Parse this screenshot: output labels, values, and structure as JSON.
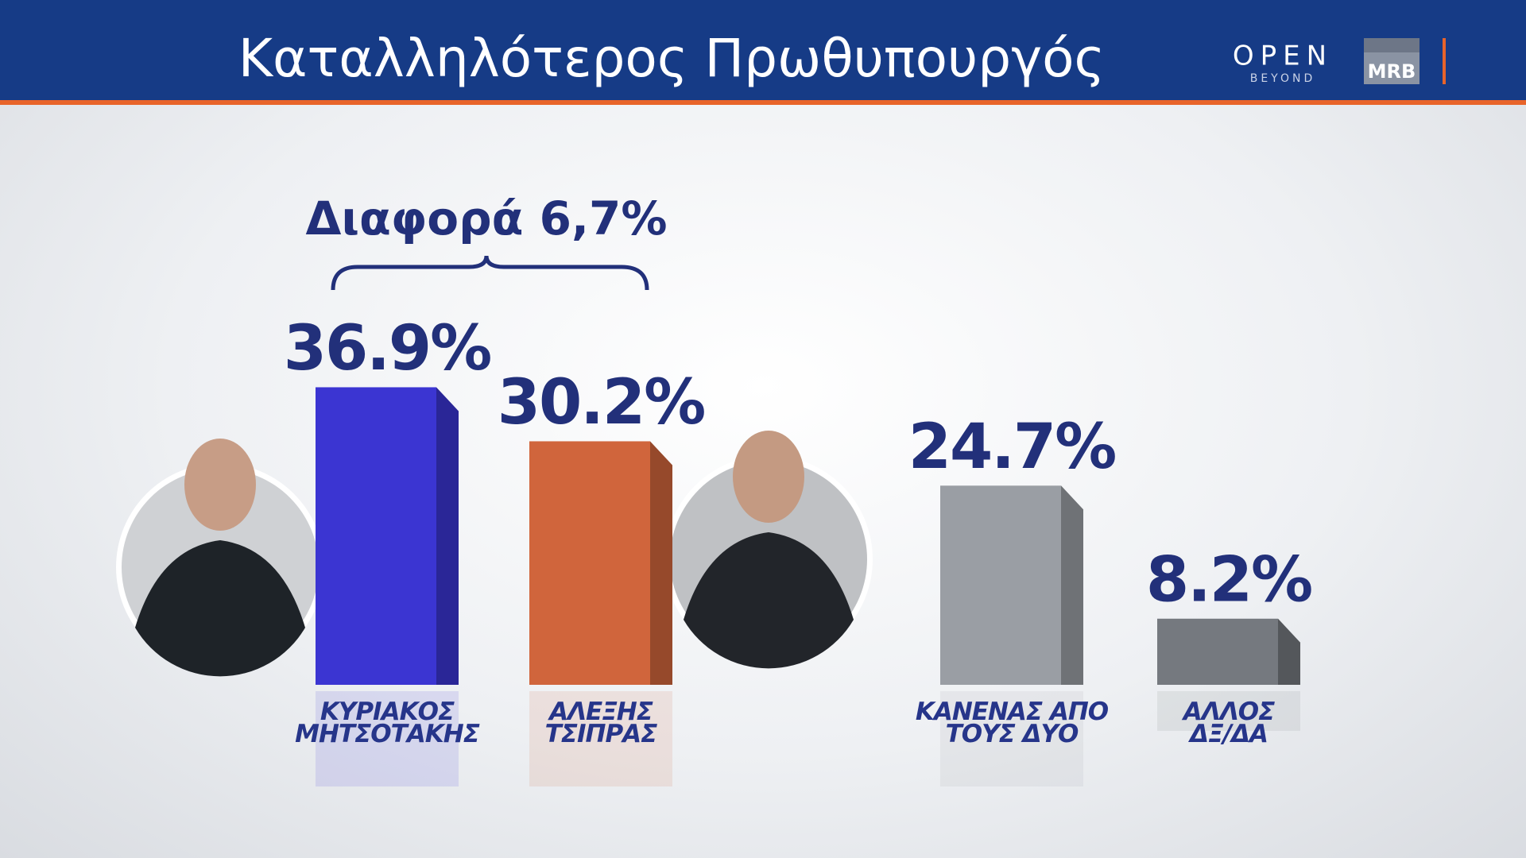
{
  "chart_data": {
    "type": "bar",
    "title": "Καταλληλότερος Πρωθυπουργός",
    "annotation": "Διαφορά 6,7%",
    "categories": [
      "ΚΥΡΙΑΚΟΣ\nΜΗΤΣΟΤΑΚΗΣ",
      "ΑΛΕΞΗΣ\nΤΣΙΠΡΑΣ",
      "ΚΑΝΕΝΑΣ ΑΠΟ\nΤΟΥΣ ΔΥΟ",
      "ΑΛΛΟΣ\nΔΞ/ΔΑ"
    ],
    "values": [
      36.9,
      30.2,
      24.7,
      8.2
    ],
    "value_labels": [
      "36.9%",
      "30.2%",
      "24.7%",
      "8.2%"
    ],
    "colors": [
      "#3b35d2",
      "#d0653c",
      "#9a9ea4",
      "#75797f"
    ]
  },
  "logos": {
    "channel": "OPEN",
    "tagline": "BEYOND",
    "pollster": "MRB"
  }
}
